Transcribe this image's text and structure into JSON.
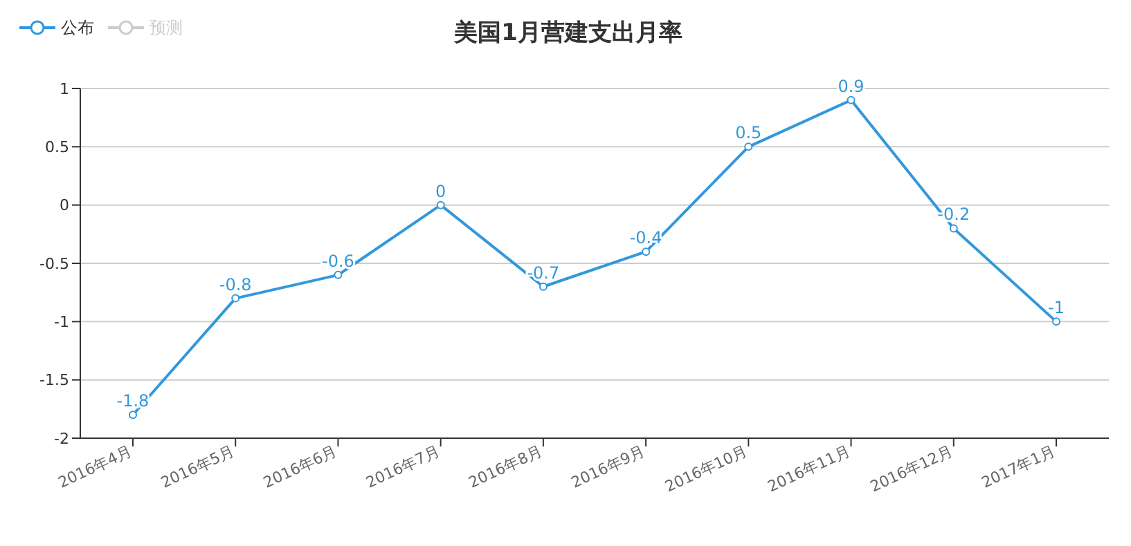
{
  "chart_data": {
    "type": "line",
    "title": "美国1月营建支出月率",
    "categories": [
      "2016年4月",
      "2016年5月",
      "2016年6月",
      "2016年7月",
      "2016年8月",
      "2016年9月",
      "2016年10月",
      "2016年11月",
      "2016年12月",
      "2017年1月"
    ],
    "series": [
      {
        "name": "公布",
        "color": "#3398db",
        "values": [
          -1.8,
          -0.8,
          -0.6,
          0,
          -0.7,
          -0.4,
          0.5,
          0.9,
          -0.2,
          -1
        ]
      },
      {
        "name": "预测",
        "color": "#cccccc",
        "values": [
          null,
          null,
          null,
          null,
          null,
          null,
          null,
          null,
          null,
          null
        ]
      }
    ],
    "ylim": [
      -2,
      1
    ],
    "yticks": [
      -2,
      -1.5,
      -1,
      -0.5,
      0,
      0.5,
      1
    ],
    "grid": "y",
    "legend": "top left",
    "marker": "circle",
    "line_style": "solid",
    "data_labels": true
  }
}
